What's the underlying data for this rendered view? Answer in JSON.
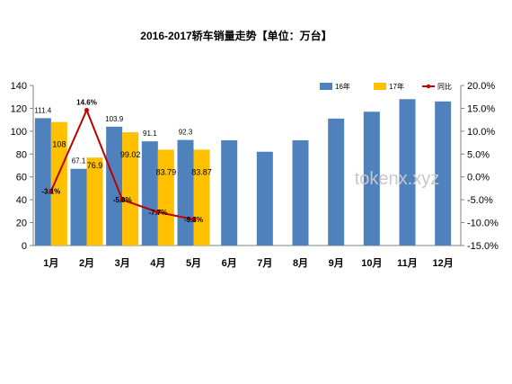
{
  "chart_data": {
    "type": "bar",
    "title": "2016-2017轿车销量走势【单位：万台】",
    "categories": [
      "1月",
      "2月",
      "3月",
      "4月",
      "5月",
      "6月",
      "7月",
      "8月",
      "9月",
      "10月",
      "11月",
      "12月"
    ],
    "series": [
      {
        "name": "16年",
        "type": "bar",
        "color": "#4f81bd",
        "values": [
          111.4,
          67.1,
          103.9,
          91.1,
          92.3,
          92,
          82,
          92,
          111,
          117,
          128,
          126
        ],
        "labels": [
          "111.4",
          "67.1",
          "103.9",
          "91.1",
          "92.3",
          null,
          null,
          null,
          null,
          null,
          null,
          null
        ]
      },
      {
        "name": "17年",
        "type": "bar",
        "color": "#ffc000",
        "values": [
          108,
          76.9,
          99.02,
          83.79,
          83.87,
          null,
          null,
          null,
          null,
          null,
          null,
          null
        ],
        "labels": [
          "108",
          "76.9",
          "99.02",
          "83.79",
          "83.87",
          null,
          null,
          null,
          null,
          null,
          null,
          null
        ]
      },
      {
        "name": "同比",
        "type": "line",
        "axis": "right",
        "color": "#c00000",
        "values": [
          -3.1,
          14.6,
          -5.0,
          -7.7,
          -9.3,
          null,
          null,
          null,
          null,
          null,
          null,
          null
        ],
        "labels": [
          "-3.1%",
          "14.6%",
          "-5.0%",
          "-7.7%",
          "-9.3%",
          null,
          null,
          null,
          null,
          null,
          null,
          null
        ]
      }
    ],
    "y_left": {
      "ylim": [
        0,
        140
      ],
      "ticks": [
        "0",
        "20",
        "40",
        "60",
        "80",
        "100",
        "120",
        "140"
      ]
    },
    "y_right": {
      "ylim": [
        -15,
        20
      ],
      "ticks": [
        "-15.0%",
        "-10.0%",
        "-5.0%",
        "0.0%",
        "5.0%",
        "10.0%",
        "15.0%",
        "20.0%"
      ]
    },
    "legend_position": "top-right",
    "grid": false
  },
  "watermark": "tokenx.xyz"
}
